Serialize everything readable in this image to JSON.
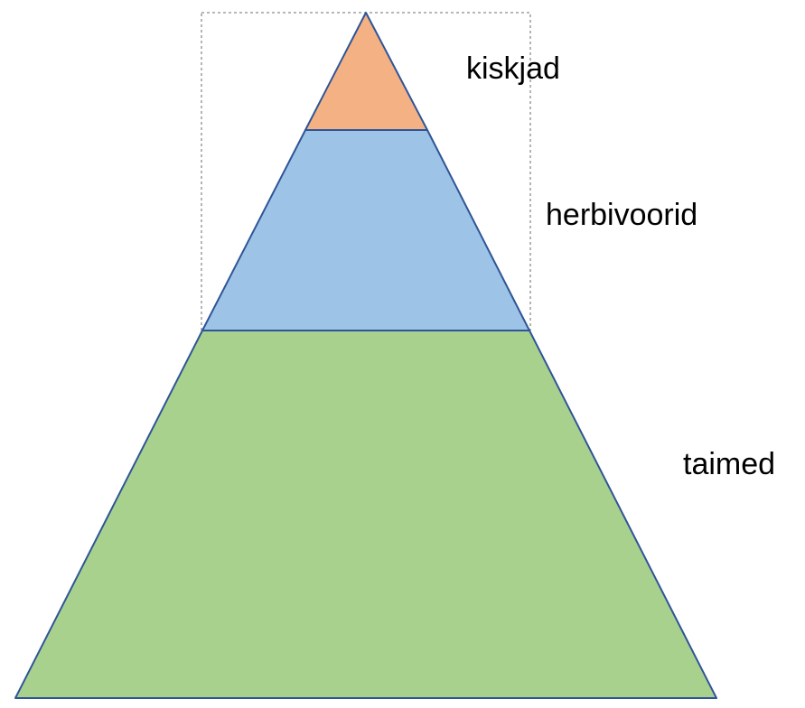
{
  "pyramid": {
    "layers": [
      {
        "id": "top",
        "label": "kiskjad",
        "color": "#F4B183"
      },
      {
        "id": "middle",
        "label": "herbivoorid",
        "color": "#9DC3E6"
      },
      {
        "id": "bottom",
        "label": "taimed",
        "color": "#A9D18E"
      }
    ],
    "outline_color": "#2F5597",
    "selection_box_color": "#8C8C8C"
  }
}
